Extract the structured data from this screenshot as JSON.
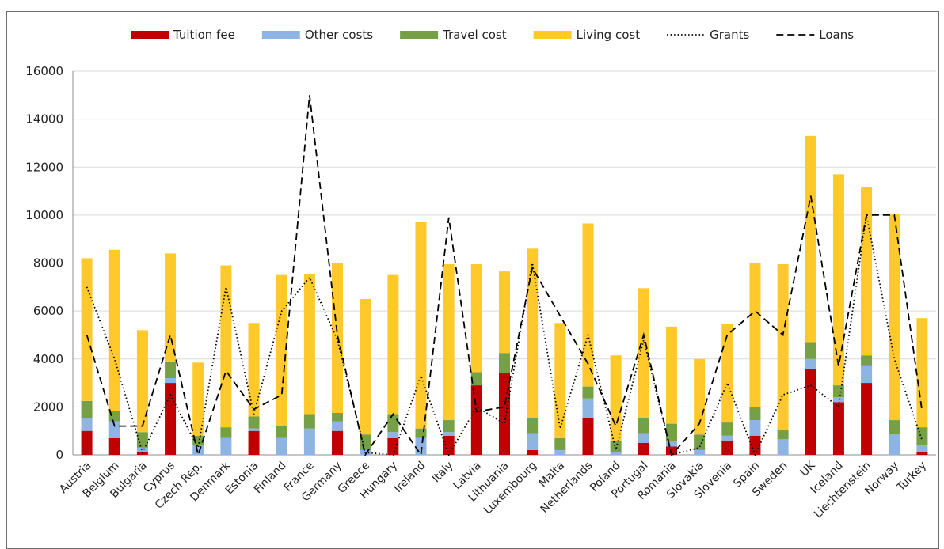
{
  "chart_data": {
    "type": "bar",
    "stacked": true,
    "ylim": [
      0,
      16000
    ],
    "yticks": [
      0,
      2000,
      4000,
      6000,
      8000,
      10000,
      12000,
      14000,
      16000
    ],
    "grid": true,
    "legend_position": "top",
    "categories": [
      "Austria",
      "Belgium",
      "Bulgaria",
      "Cyprus",
      "Czech Rep.",
      "Denmark",
      "Estonia",
      "Finland",
      "France",
      "Germany",
      "Greece",
      "Hungary",
      "Ireland",
      "Italy",
      "Latvia",
      "Lithuania",
      "Luxembourg",
      "Malta",
      "Netherlands",
      "Poland",
      "Portugal",
      "Romania",
      "Slovakia",
      "Slovenia",
      "Spain",
      "Sweden",
      "UK",
      "Iceland",
      "Liechtenstein",
      "Norway",
      "Turkey"
    ],
    "series": [
      {
        "name": "Tuition fee",
        "kind": "bar",
        "color": "#c00000",
        "values": [
          1000,
          700,
          100,
          3000,
          0,
          0,
          1000,
          0,
          0,
          1000,
          0,
          700,
          0,
          800,
          2900,
          3400,
          200,
          0,
          1550,
          0,
          500,
          350,
          0,
          600,
          800,
          0,
          3600,
          2200,
          3000,
          0,
          100
        ]
      },
      {
        "name": "Other costs",
        "kind": "bar",
        "color": "#8db4e2",
        "values": [
          550,
          700,
          200,
          200,
          400,
          700,
          100,
          700,
          1100,
          400,
          200,
          250,
          700,
          150,
          0,
          0,
          700,
          200,
          800,
          100,
          400,
          200,
          200,
          200,
          650,
          650,
          400,
          200,
          700,
          850,
          300
        ]
      },
      {
        "name": "Travel cost",
        "kind": "bar",
        "color": "#76a046",
        "values": [
          700,
          450,
          650,
          700,
          400,
          450,
          500,
          500,
          600,
          350,
          650,
          750,
          400,
          500,
          550,
          850,
          650,
          500,
          500,
          500,
          650,
          750,
          650,
          550,
          550,
          400,
          700,
          500,
          450,
          600,
          750
        ]
      },
      {
        "name": "Living cost",
        "kind": "bar",
        "color": "#ffc92c",
        "values": [
          5950,
          6700,
          4250,
          4500,
          3050,
          6750,
          3900,
          6300,
          5850,
          6250,
          5650,
          5800,
          8600,
          6500,
          4500,
          3400,
          7050,
          4800,
          6800,
          3550,
          5400,
          4050,
          3150,
          4100,
          6000,
          6900,
          8600,
          8800,
          7000,
          8600,
          4550
        ]
      },
      {
        "name": "Grants",
        "kind": "line",
        "style": "dotted",
        "color": "#000000",
        "values": [
          7000,
          4000,
          100,
          2500,
          300,
          7000,
          1700,
          6000,
          7400,
          4800,
          100,
          0,
          3300,
          0,
          2000,
          1300,
          8000,
          1100,
          5000,
          200,
          4800,
          0,
          300,
          3000,
          0,
          2500,
          2900,
          2000,
          10000,
          4000,
          600
        ]
      },
      {
        "name": "Loans",
        "kind": "line",
        "style": "dashed",
        "color": "#000000",
        "values": [
          5000,
          1200,
          1200,
          5000,
          0,
          3500,
          1900,
          2500,
          15000,
          5000,
          0,
          1700,
          0,
          9900,
          1800,
          2000,
          7800,
          5800,
          3800,
          1200,
          5000,
          0,
          1300,
          5000,
          6000,
          5000,
          10800,
          3700,
          10000,
          10000,
          1800
        ]
      }
    ]
  }
}
